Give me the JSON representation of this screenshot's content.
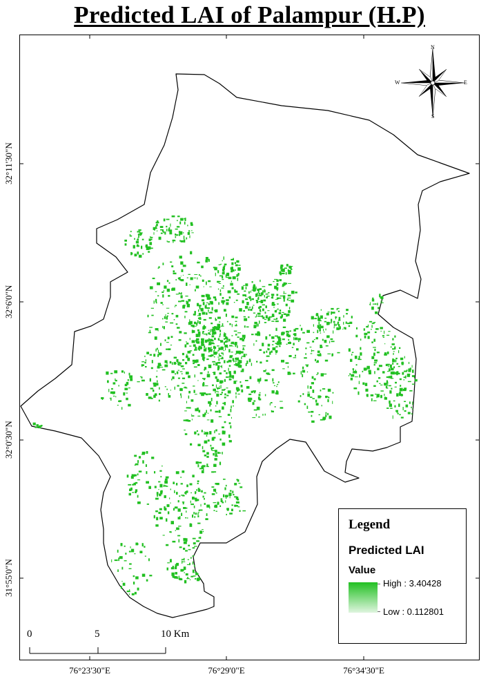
{
  "title": "Predicted LAI of Palampur (H.P)",
  "graticule": {
    "latitudes": [
      "32°11'30\"N",
      "32°6'0\"N",
      "32°0'30\"N",
      "31°55'0\"N"
    ],
    "longitudes": [
      "76°23'30\"E",
      "76°29'0\"E",
      "76°34'30\"E"
    ]
  },
  "north_arrow": {
    "n": "N",
    "s": "S",
    "e": "E",
    "w": "W",
    "icon": "compass-rose-icon"
  },
  "legend": {
    "heading": "Legend",
    "layer_name": "Predicted LAI",
    "field_name": "Value",
    "high_label": "High : 3.40428",
    "low_label": "Low : 0.112801",
    "ramp_colors": [
      "#22c022",
      "#dff5df"
    ]
  },
  "scale_bar": {
    "labels": [
      "0",
      "5",
      "10 Km"
    ]
  },
  "colors": {
    "vegetation": "#22c022",
    "outline": "#000000",
    "background": "#ffffff"
  }
}
